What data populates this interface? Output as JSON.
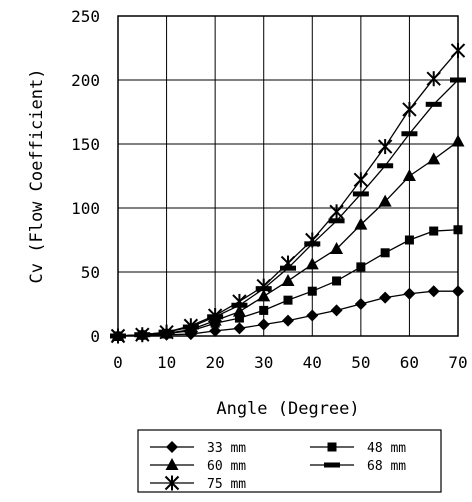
{
  "chart_data": {
    "type": "line",
    "xlabel": "Angle (Degree)",
    "ylabel": "Cv (Flow Coefficient)",
    "xlim": [
      0,
      70
    ],
    "ylim": [
      0,
      250
    ],
    "xticks": [
      0,
      10,
      20,
      30,
      40,
      50,
      60,
      70
    ],
    "yticks": [
      0,
      50,
      100,
      150,
      200,
      250
    ],
    "grid": true,
    "legend_position": "bottom",
    "x": [
      0,
      5,
      10,
      15,
      20,
      25,
      30,
      35,
      40,
      45,
      50,
      55,
      60,
      65,
      70
    ],
    "series": [
      {
        "name": "33 mm",
        "marker": "diamond",
        "values": [
          0,
          0.5,
          1,
          1.5,
          4,
          6,
          9,
          12,
          16,
          20,
          25,
          30,
          33,
          35,
          35
        ]
      },
      {
        "name": "48 mm",
        "marker": "square",
        "values": [
          0,
          1,
          2,
          4,
          10,
          14,
          20,
          28,
          35,
          43,
          54,
          65,
          75,
          82,
          83
        ]
      },
      {
        "name": "60 mm",
        "marker": "triangle",
        "values": [
          0,
          1,
          2,
          5,
          12,
          19,
          31,
          43,
          56,
          68,
          87,
          105,
          125,
          138,
          152
        ]
      },
      {
        "name": "68 mm",
        "marker": "dash",
        "values": [
          0,
          1,
          3,
          7,
          15,
          24,
          37,
          53,
          72,
          90,
          111,
          133,
          158,
          181,
          200
        ]
      },
      {
        "name": "75 mm",
        "marker": "star",
        "values": [
          0,
          1,
          3,
          8,
          16,
          27,
          39,
          57,
          75,
          97,
          122,
          148,
          177,
          201,
          223
        ]
      }
    ],
    "legend": {
      "items": [
        {
          "series": 0,
          "label": "33 mm"
        },
        {
          "series": 1,
          "label": "48 mm"
        },
        {
          "series": 2,
          "label": "60 mm"
        },
        {
          "series": 3,
          "label": "68 mm"
        },
        {
          "series": 4,
          "label": "75 mm"
        }
      ]
    }
  }
}
